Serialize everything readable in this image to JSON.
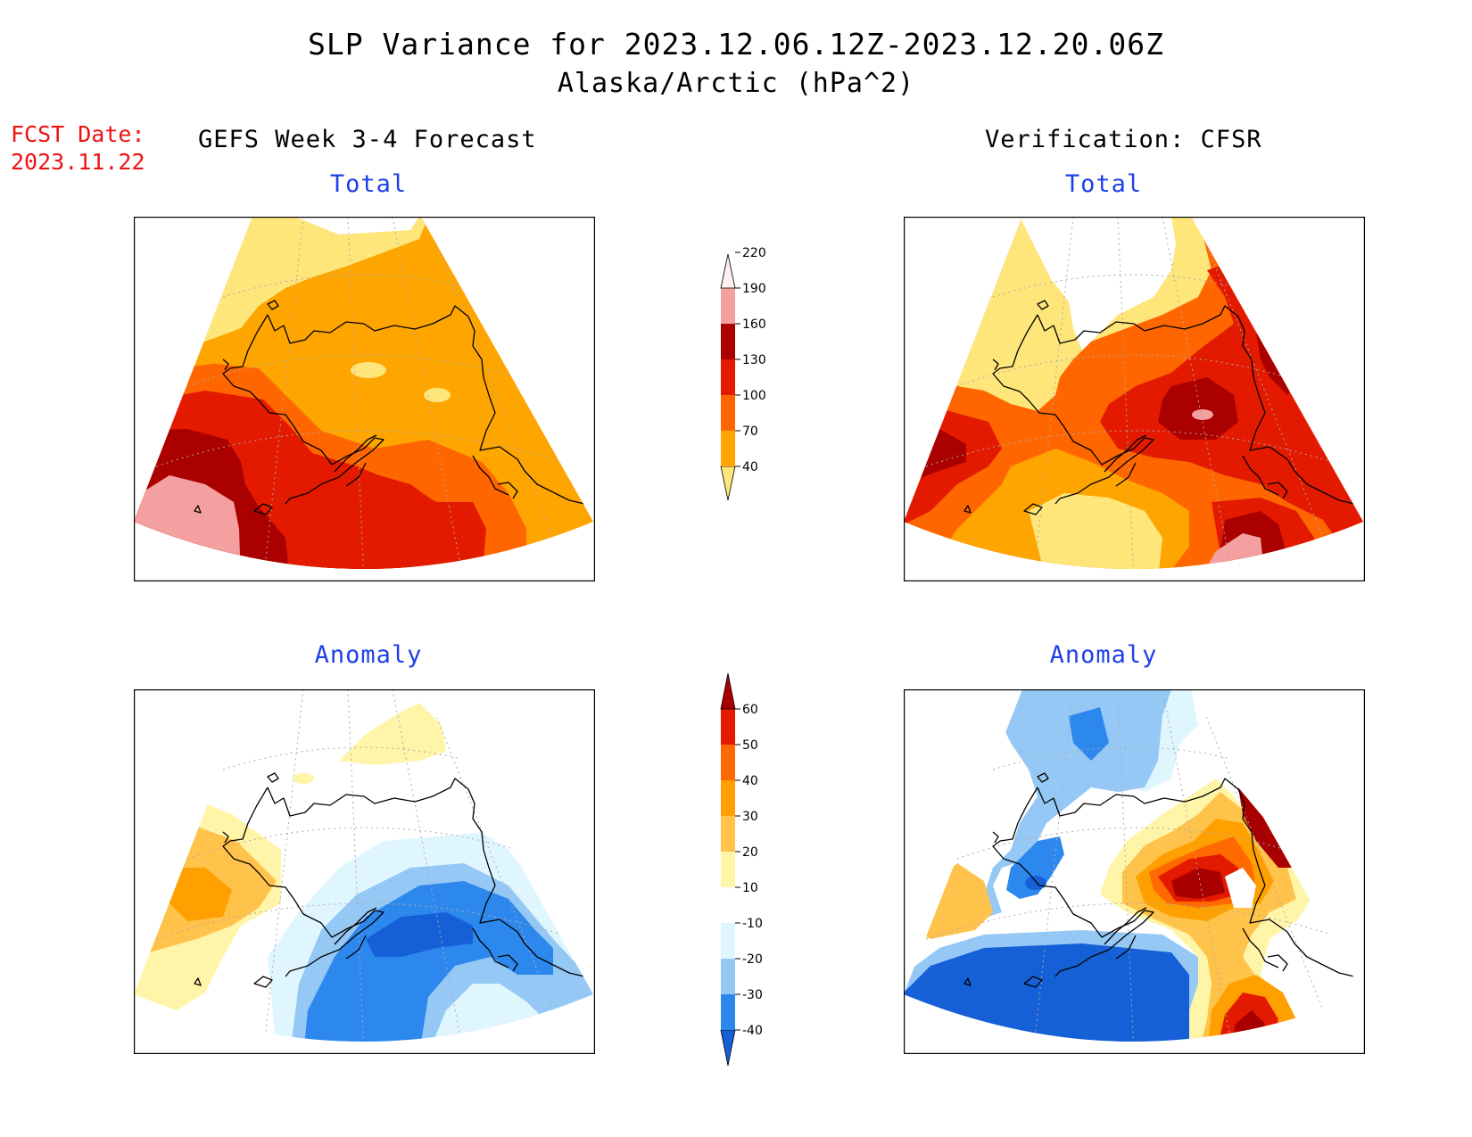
{
  "header": {
    "title": "SLP Variance for 2023.12.06.12Z-2023.12.20.06Z",
    "subtitle": "Alaska/Arctic (hPa^2)",
    "fcst_label": "FCST Date:",
    "fcst_date": "2023.11.22"
  },
  "columns": {
    "left_title": "GEFS Week 3-4 Forecast",
    "right_title": "Verification: CFSR"
  },
  "panels": {
    "top_left": "Total",
    "top_right": "Total",
    "bottom_left": "Anomaly",
    "bottom_right": "Anomaly"
  },
  "legend_total": {
    "levels": [
      "40",
      "70",
      "100",
      "130",
      "160",
      "190",
      "220"
    ],
    "colors": [
      "#ffe67a",
      "#ffa500",
      "#ff6600",
      "#e31a00",
      "#aa0000",
      "#f4a0a0",
      "#fdf0f0"
    ]
  },
  "legend_anomaly": {
    "levels": [
      "-40",
      "-30",
      "-20",
      "-10",
      "10",
      "20",
      "30",
      "40",
      "50",
      "60"
    ],
    "colors": [
      "#1560d6",
      "#2d88ee",
      "#95c8f5",
      "#dff6ff",
      "#ffffff",
      "#fff5a8",
      "#ffc24a",
      "#ffa000",
      "#ff6a00",
      "#e31a00",
      "#a80000"
    ]
  },
  "map_colors": {
    "land_outline": "#000000",
    "graticule": "#aaaaaa"
  }
}
